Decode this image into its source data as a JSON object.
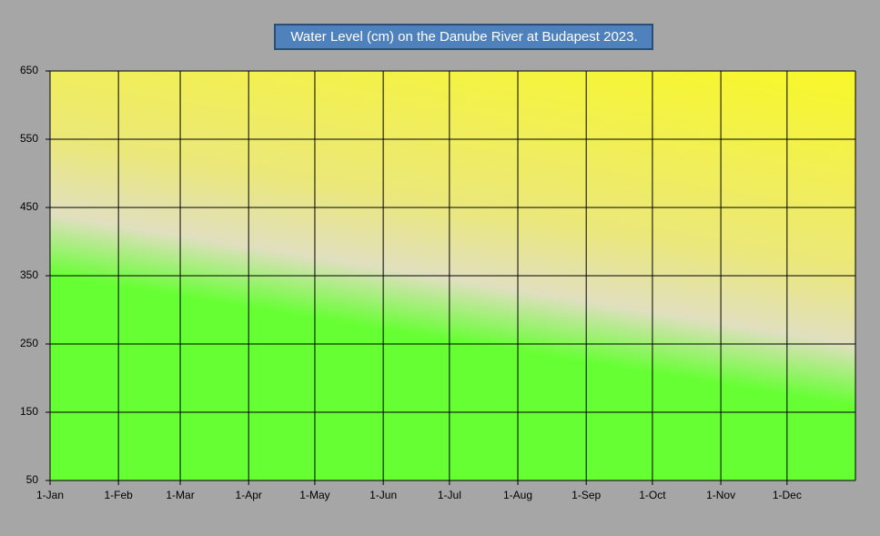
{
  "chart_data": {
    "type": "line",
    "title": "Water Level (cm) on the Danube River at Budapest  2023.",
    "xlim": [
      0,
      365
    ],
    "xticks": [
      {
        "value": 0,
        "label": "1-Jan"
      },
      {
        "value": 31,
        "label": "1-Feb"
      },
      {
        "value": 59,
        "label": "1-Mar"
      },
      {
        "value": 90,
        "label": "1-Apr"
      },
      {
        "value": 120,
        "label": "1-May"
      },
      {
        "value": 151,
        "label": "1-Jun"
      },
      {
        "value": 181,
        "label": "1-Jul"
      },
      {
        "value": 212,
        "label": "1-Aug"
      },
      {
        "value": 243,
        "label": "1-Sep"
      },
      {
        "value": 273,
        "label": "1-Oct"
      },
      {
        "value": 304,
        "label": "1-Nov"
      },
      {
        "value": 334,
        "label": "1-Dec"
      }
    ],
    "ylim": [
      50,
      650
    ],
    "yticks": [
      50,
      150,
      250,
      350,
      450,
      550,
      650
    ],
    "grid": true
  }
}
